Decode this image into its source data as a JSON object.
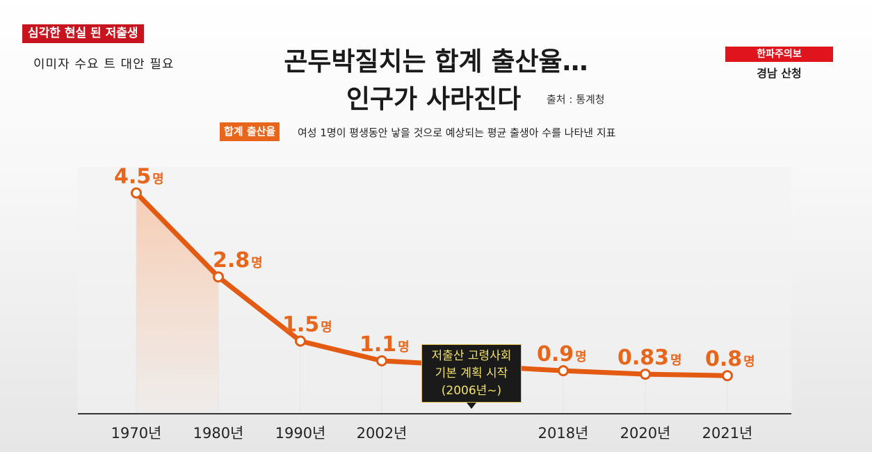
{
  "overlay": {
    "tag_left": "심각한 현실 된 저출생",
    "ticker": "이미자 수요 트 대안 필요",
    "badge_right": "한파주의보",
    "region_right": "경남 산청"
  },
  "header": {
    "title_line1": "곤두박질치는 합계 출산율…",
    "title_line2": "인구가 사라진다",
    "source": "출처 : 통계청"
  },
  "definition": {
    "label": "합계 출산율",
    "text": "여성 1명이 평생동안 낳을 것으로 예상되는 평균 출생아 수를 나타낸 지표"
  },
  "callout": {
    "line1": "저출산 고령사회",
    "line2": "기본 계획 시작",
    "line3": "(2006년~)"
  },
  "colors": {
    "accent": "#e8661c",
    "line": "#e35a12",
    "brand_red": "#c8141e",
    "callout_text": "#f2e16b"
  },
  "chart_data": {
    "type": "line",
    "title": "곤두박질치는 합계 출산율… 인구가 사라진다",
    "categories": [
      "1970년",
      "1980년",
      "1990년",
      "2002년",
      "2018년",
      "2020년",
      "2021년"
    ],
    "values": [
      4.5,
      2.8,
      1.5,
      1.1,
      0.9,
      0.83,
      0.8
    ],
    "value_labels": [
      "4.5",
      "2.8",
      "1.5",
      "1.1",
      "0.9",
      "0.83",
      "0.8"
    ],
    "unit": "명",
    "xlabel": "",
    "ylabel": "",
    "ylim": [
      0,
      5
    ],
    "grid": false,
    "area_under_first_segment": true
  }
}
